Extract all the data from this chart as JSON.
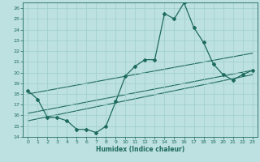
{
  "title": "",
  "xlabel": "Humidex (Indice chaleur)",
  "xlim": [
    -0.5,
    23.5
  ],
  "ylim": [
    14,
    26.5
  ],
  "yticks": [
    14,
    15,
    16,
    17,
    18,
    19,
    20,
    21,
    22,
    23,
    24,
    25,
    26
  ],
  "xticks": [
    0,
    1,
    2,
    3,
    4,
    5,
    6,
    7,
    8,
    9,
    10,
    11,
    12,
    13,
    14,
    15,
    16,
    17,
    18,
    19,
    20,
    21,
    22,
    23
  ],
  "background_color": "#bde0e0",
  "grid_color": "#9ecece",
  "line_color": "#1e6b5e",
  "line1_x": [
    0,
    1,
    2,
    3,
    4,
    5,
    6,
    7,
    8,
    9,
    10,
    11,
    12,
    13,
    14,
    15,
    16,
    17,
    18,
    19,
    20,
    21,
    22,
    23
  ],
  "line1_y": [
    18.3,
    17.5,
    15.8,
    15.8,
    15.5,
    14.7,
    14.7,
    14.4,
    15.0,
    17.3,
    19.7,
    20.6,
    21.2,
    21.2,
    25.5,
    25.0,
    26.5,
    24.2,
    22.8,
    20.8,
    19.8,
    19.3,
    19.8,
    20.2
  ],
  "line2_x": [
    0,
    23
  ],
  "line2_y": [
    18.0,
    21.8
  ],
  "line3_x": [
    0,
    23
  ],
  "line3_y": [
    16.2,
    20.2
  ],
  "line4_x": [
    0,
    23
  ],
  "line4_y": [
    15.5,
    19.8
  ]
}
